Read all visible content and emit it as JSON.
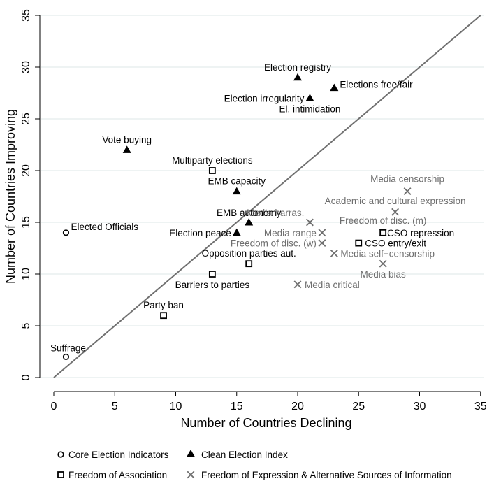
{
  "chart_data": {
    "type": "scatter",
    "xlabel": "Number of Countries Declining",
    "ylabel": "Number of Countries Improving",
    "xlim": [
      0,
      35
    ],
    "ylim": [
      0,
      35
    ],
    "xticks": [
      "0",
      "5",
      "10",
      "15",
      "20",
      "25",
      "30",
      "35"
    ],
    "yticks": [
      "0",
      "5",
      "10",
      "15",
      "20",
      "25",
      "30",
      "35"
    ],
    "grid": true,
    "diagonal_line": {
      "from": [
        0,
        0
      ],
      "to": [
        35,
        35
      ]
    },
    "legend_position": "bottom",
    "series": [
      {
        "name": "Core Election Indicators",
        "marker": "hollow-circle",
        "color": "#000000",
        "points": [
          {
            "label": "Elected Officials",
            "x": 1,
            "y": 14
          },
          {
            "label": "Suffrage",
            "x": 1,
            "y": 2
          }
        ]
      },
      {
        "name": "Clean Election Index",
        "marker": "filled-triangle",
        "color": "#000000",
        "points": [
          {
            "label": "Election registry",
            "x": 20,
            "y": 29
          },
          {
            "label": "Elections free/fair",
            "x": 23,
            "y": 28
          },
          {
            "label": "Election irregularity",
            "x": 21,
            "y": 27
          },
          {
            "label": "El. intimidation",
            "x": 21,
            "y": 27
          },
          {
            "label": "Vote buying",
            "x": 6,
            "y": 22
          },
          {
            "label": "EMB capacity",
            "x": 15,
            "y": 18
          },
          {
            "label": "EMB autonomy",
            "x": 16,
            "y": 15
          },
          {
            "label": "Election peace",
            "x": 15,
            "y": 14
          }
        ]
      },
      {
        "name": "Freedom of Association",
        "marker": "hollow-square",
        "color": "#000000",
        "points": [
          {
            "label": "Multiparty elections",
            "x": 13,
            "y": 20
          },
          {
            "label": "CSO repression",
            "x": 27,
            "y": 14
          },
          {
            "label": "CSO entry/exit",
            "x": 25,
            "y": 13
          },
          {
            "label": "Opposition parties aut.",
            "x": 16,
            "y": 11
          },
          {
            "label": "Barriers to parties",
            "x": 13,
            "y": 10
          },
          {
            "label": "Party ban",
            "x": 9,
            "y": 6
          }
        ]
      },
      {
        "name": "Freedom of Expression & Alternative Sources of Information",
        "marker": "x",
        "color": "#6e6e6e",
        "points": [
          {
            "label": "Media censorship",
            "x": 29,
            "y": 18
          },
          {
            "label": "Academic and cultural expression",
            "x": 28,
            "y": 16
          },
          {
            "label": "Media harras.",
            "x": 21,
            "y": 15
          },
          {
            "label": "Freedom of disc. (m)",
            "x": 27,
            "y": 14
          },
          {
            "label": "Media range",
            "x": 22,
            "y": 14
          },
          {
            "label": "Freedom of disc. (w)",
            "x": 22,
            "y": 13
          },
          {
            "label": "Media self−censorship",
            "x": 23,
            "y": 12
          },
          {
            "label": "Media bias",
            "x": 27,
            "y": 11
          },
          {
            "label": "Media critical",
            "x": 20,
            "y": 9
          }
        ]
      }
    ]
  }
}
